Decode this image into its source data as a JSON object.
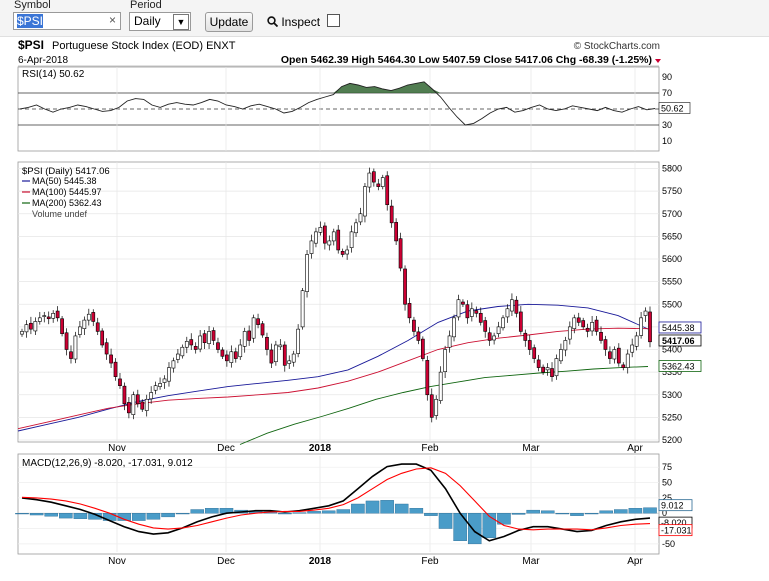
{
  "toolbar": {
    "symbol_label": "Symbol",
    "symbol_value": "$PSI",
    "clear_glyph": "×",
    "period_label": "Period",
    "period_value": "Daily",
    "update_label": "Update",
    "inspect_label": "Inspect",
    "inspect_checked": false
  },
  "header": {
    "title_symbol": "$PSI",
    "title_rest": "Portuguese Stock Index (EOD) ENXT",
    "credit": "© StockCharts.com",
    "date": "6-Apr-2018",
    "ohlc_text": "Open 5462.39  High 5464.30  Low 5407.59  Close 5417.06  Chg -68.39 (-1.25%)"
  },
  "colors": {
    "up_candle": "#ffffff",
    "down_candle": "#cc0033",
    "ma50": "#1a1a99",
    "ma100": "#cc1133",
    "ma200": "#116611",
    "rsi_fill": "#336633",
    "macd_line": "#000000",
    "signal_line": "#ff0000",
    "histogram": "#4a9cc8"
  },
  "chart_data": [
    {
      "type": "line",
      "title": "RSI(14) 50.62",
      "ylim": [
        0,
        100
      ],
      "y_ticks": [
        10,
        30,
        50,
        70,
        90
      ],
      "reference_lines": [
        30,
        50,
        70
      ],
      "last_value": "50.62",
      "series": [
        {
          "name": "RSI(14)",
          "values": [
            50,
            52,
            55,
            50,
            46,
            50,
            52,
            55,
            53,
            50,
            47,
            48,
            52,
            60,
            63,
            62,
            55,
            52,
            56,
            58,
            56,
            55,
            58,
            62,
            60,
            55,
            53,
            50,
            54,
            56,
            53,
            50,
            45,
            47,
            52,
            58,
            62,
            65,
            68,
            78,
            82,
            80,
            77,
            78,
            75,
            73,
            76,
            80,
            82,
            84,
            75,
            65,
            52,
            40,
            30,
            32,
            38,
            45,
            50,
            52,
            46,
            48,
            52,
            55,
            50,
            48,
            50,
            54,
            52,
            50,
            48,
            52,
            48,
            46,
            50,
            53,
            49,
            50.62
          ]
        }
      ],
      "categories_note": "Nov, Dec, 2018, Feb, Mar, Apr"
    },
    {
      "type": "line",
      "title": "$PSI (Daily) 5417.06",
      "x_ticks": [
        "Nov",
        "Dec",
        "2018",
        "Feb",
        "Mar",
        "Apr"
      ],
      "y_ticks": [
        5200,
        5250,
        5300,
        5350,
        5400,
        5450,
        5500,
        5550,
        5600,
        5650,
        5700,
        5750,
        5800
      ],
      "ylim": [
        5200,
        5810
      ],
      "legend": [
        "$PSI (Daily) 5417.06",
        "MA(50) 5445.38",
        "MA(100) 5445.97",
        "MA(200) 5362.43",
        "Volume undef"
      ],
      "price_tags": [
        "5445.38",
        "5417.06",
        "5362.43"
      ],
      "closes": [
        5440,
        5455,
        5445,
        5462,
        5470,
        5475,
        5468,
        5480,
        5470,
        5435,
        5400,
        5380,
        5430,
        5450,
        5465,
        5478,
        5462,
        5440,
        5410,
        5390,
        5370,
        5340,
        5320,
        5280,
        5260,
        5300,
        5280,
        5268,
        5290,
        5305,
        5320,
        5325,
        5335,
        5360,
        5375,
        5390,
        5405,
        5418,
        5410,
        5400,
        5430,
        5415,
        5440,
        5420,
        5400,
        5385,
        5375,
        5395,
        5380,
        5410,
        5440,
        5420,
        5470,
        5455,
        5432,
        5400,
        5370,
        5410,
        5410,
        5365,
        5375,
        5390,
        5445,
        5530,
        5610,
        5640,
        5660,
        5670,
        5635,
        5640,
        5660,
        5620,
        5610,
        5620,
        5660,
        5680,
        5700,
        5760,
        5790,
        5770,
        5760,
        5780,
        5720,
        5680,
        5640,
        5580,
        5500,
        5470,
        5440,
        5420,
        5380,
        5300,
        5250,
        5290,
        5350,
        5400,
        5430,
        5470,
        5510,
        5500,
        5470,
        5490,
        5480,
        5460,
        5440,
        5420,
        5430,
        5450,
        5470,
        5490,
        5510,
        5480,
        5440,
        5420,
        5400,
        5380,
        5360,
        5350,
        5360,
        5340,
        5380,
        5400,
        5420,
        5450,
        5470,
        5460,
        5450,
        5440,
        5460,
        5440,
        5420,
        5400,
        5380,
        5400,
        5370,
        5360,
        5390,
        5410,
        5430,
        5470,
        5485,
        5417.06
      ],
      "series": [
        {
          "name": "MA(50)",
          "values": [
            5220,
            5235,
            5250,
            5268,
            5285,
            5298,
            5308,
            5318,
            5325,
            5332,
            5340,
            5355,
            5385,
            5420,
            5460,
            5485,
            5495,
            5500,
            5498,
            5492,
            5475,
            5445.38
          ]
        },
        {
          "name": "MA(100)",
          "values": [
            5225,
            5240,
            5255,
            5270,
            5280,
            5288,
            5292,
            5295,
            5300,
            5305,
            5315,
            5330,
            5350,
            5375,
            5400,
            5415,
            5425,
            5432,
            5440,
            5445,
            5447,
            5445.97
          ]
        },
        {
          "name": "MA(200)",
          "values": [
            5190,
            5215,
            5235,
            5252,
            5270,
            5290,
            5305,
            5318,
            5328,
            5338,
            5343,
            5348,
            5352,
            5357,
            5360,
            5362.43
          ]
        }
      ]
    },
    {
      "type": "line",
      "title": "MACD(12,26,9) -8.020, -17.031, 9.012",
      "x_ticks": [
        "Nov",
        "Dec",
        "2018",
        "Feb",
        "Mar",
        "Apr"
      ],
      "y_ticks": [
        -50,
        -25,
        0,
        25,
        50,
        75
      ],
      "ylim": [
        -60,
        90
      ],
      "tags": [
        "9.012",
        "-8.020",
        "-17.031"
      ],
      "series": [
        {
          "name": "MACD(12,26,9)",
          "values": [
            25,
            22,
            18,
            12,
            6,
            -2,
            -12,
            -22,
            -30,
            -34,
            -32,
            -24,
            -14,
            -6,
            0,
            2,
            4,
            4,
            2,
            4,
            8,
            12,
            20,
            40,
            60,
            76,
            80,
            80,
            70,
            40,
            0,
            -30,
            -45,
            -38,
            -28,
            -22,
            -22,
            -26,
            -30,
            -28,
            -20,
            -14,
            -10,
            -8.02
          ]
        },
        {
          "name": "Signal",
          "values": [
            26,
            25,
            23,
            20,
            15,
            8,
            0,
            -10,
            -18,
            -24,
            -26,
            -24,
            -20,
            -14,
            -8,
            -3,
            0,
            2,
            3,
            3,
            5,
            8,
            14,
            25,
            40,
            55,
            65,
            72,
            74,
            65,
            45,
            20,
            -5,
            -20,
            -26,
            -27,
            -26,
            -26,
            -26,
            -27,
            -24,
            -20,
            -18,
            -17.031
          ]
        },
        {
          "name": "Histogram",
          "values": [
            -1,
            -3,
            -5,
            -8,
            -9,
            -10,
            -12,
            -12,
            -12,
            -10,
            -6,
            0,
            6,
            8,
            8,
            5,
            4,
            2,
            -1,
            1,
            3,
            4,
            6,
            15,
            20,
            21,
            15,
            8,
            -4,
            -25,
            -45,
            -50,
            -40,
            -18,
            -2,
            5,
            4,
            0,
            -4,
            -1,
            4,
            6,
            8,
            9.012
          ]
        }
      ]
    }
  ]
}
